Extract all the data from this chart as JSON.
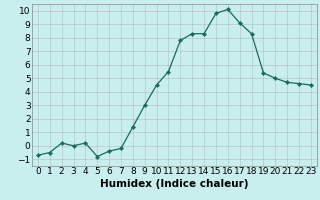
{
  "title": "",
  "xlabel": "Humidex (Indice chaleur)",
  "ylabel": "",
  "x": [
    0,
    1,
    2,
    3,
    4,
    5,
    6,
    7,
    8,
    9,
    10,
    11,
    12,
    13,
    14,
    15,
    16,
    17,
    18,
    19,
    20,
    21,
    22,
    23
  ],
  "y": [
    -0.7,
    -0.5,
    0.2,
    0.0,
    0.2,
    -0.8,
    -0.4,
    -0.2,
    1.4,
    3.0,
    4.5,
    5.5,
    7.8,
    8.3,
    8.3,
    9.8,
    10.1,
    9.1,
    8.3,
    5.4,
    5.0,
    4.7,
    4.6,
    4.5
  ],
  "line_color": "#1a6b5a",
  "marker": "D",
  "marker_size": 2.2,
  "bg_color": "#c8eeee",
  "grid_color": "#b0b0b0",
  "ylim": [
    -1.5,
    10.5
  ],
  "xlim": [
    -0.5,
    23.5
  ],
  "yticks": [
    -1,
    0,
    1,
    2,
    3,
    4,
    5,
    6,
    7,
    8,
    9,
    10
  ],
  "xticks": [
    0,
    1,
    2,
    3,
    4,
    5,
    6,
    7,
    8,
    9,
    10,
    11,
    12,
    13,
    14,
    15,
    16,
    17,
    18,
    19,
    20,
    21,
    22,
    23
  ],
  "tick_fontsize": 6.5,
  "xlabel_fontsize": 7.5
}
